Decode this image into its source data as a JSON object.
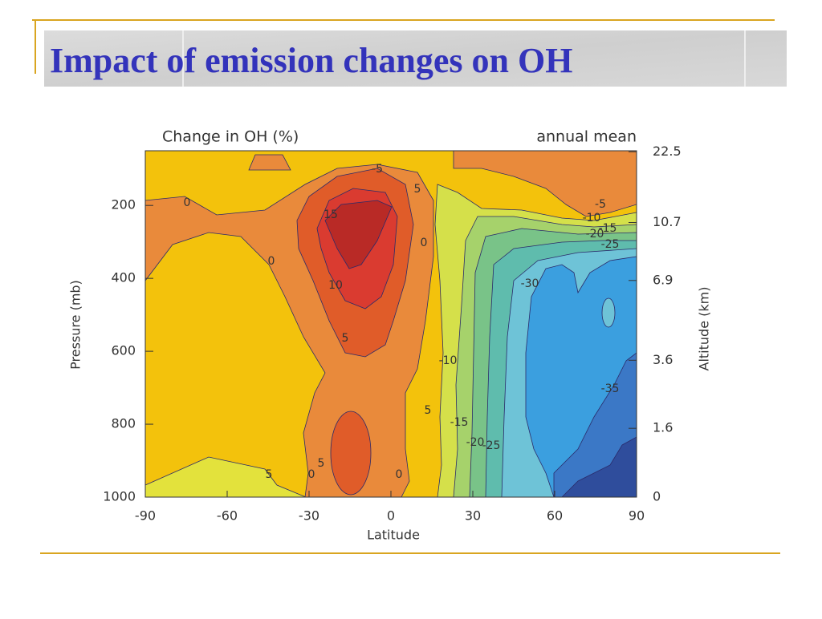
{
  "slide_title": "Impact of emission changes on OH",
  "chart_data": {
    "type": "contour",
    "title": "Change in  OH (%)",
    "subtitle": "annual mean",
    "x_label": "Latitude",
    "y_label": "Pressure (mb)",
    "y2_label": "Altitude (km)",
    "xlim": [
      -90,
      90
    ],
    "xticks": [
      -90,
      -60,
      -30,
      0,
      30,
      60,
      90
    ],
    "ylim": [
      1000,
      50
    ],
    "yticks": [
      200,
      400,
      600,
      800,
      1000
    ],
    "y2lim": [
      0,
      23
    ],
    "y2ticks": [
      22.5,
      10.7,
      6.9,
      3.6,
      1.6,
      0
    ],
    "levels": [
      {
        "value": -5,
        "color": "#e3e23c"
      },
      {
        "value": 0,
        "color": "#f3c20c"
      },
      {
        "value": 5,
        "color": "#e98a3b"
      },
      {
        "value": 10,
        "color": "#e05c29"
      },
      {
        "value": 15,
        "color": "#da3b30"
      },
      {
        "value": 20,
        "color": "#b92a26"
      },
      {
        "value": -10,
        "color": "#d5e04a"
      },
      {
        "value": -15,
        "color": "#a6d26b"
      },
      {
        "value": -20,
        "color": "#79c388"
      },
      {
        "value": -25,
        "color": "#5fbcad"
      },
      {
        "value": -30,
        "color": "#6ec3d7"
      },
      {
        "value": -35,
        "color": "#3b9fdf"
      },
      {
        "value": -40,
        "color": "#3b78c6"
      },
      {
        "value": -45,
        "color": "#2f4d9c"
      }
    ],
    "contour_labels": [
      -5,
      0,
      5,
      15,
      0,
      0,
      10,
      5,
      -30,
      -10,
      5,
      -15,
      -20,
      -25,
      -35,
      5,
      0,
      5,
      0,
      -5,
      -10,
      -20,
      -15,
      -25
    ]
  }
}
